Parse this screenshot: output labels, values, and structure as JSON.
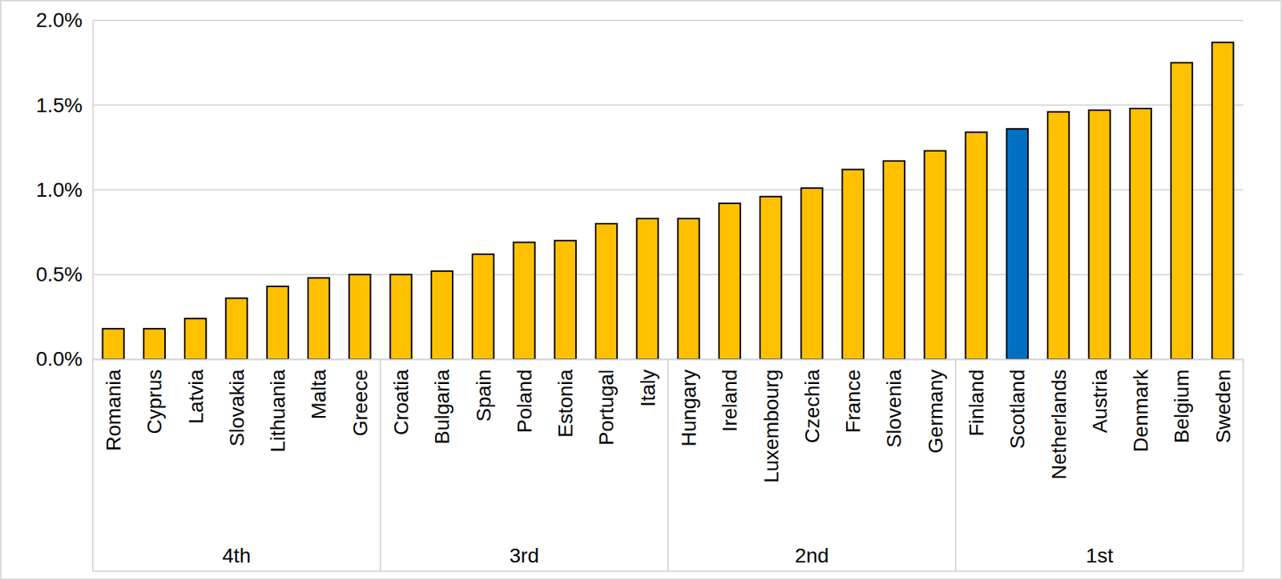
{
  "chart_data": {
    "type": "bar",
    "categories": [
      "Romania",
      "Cyprus",
      "Latvia",
      "Slovakia",
      "Lithuania",
      "Malta",
      "Greece",
      "Croatia",
      "Bulgaria",
      "Spain",
      "Poland",
      "Estonia",
      "Portugal",
      "Italy",
      "Hungary",
      "Ireland",
      "Luxembourg",
      "Czechia",
      "France",
      "Slovenia",
      "Germany",
      "Finland",
      "Scotland",
      "Netherlands",
      "Austria",
      "Denmark",
      "Belgium",
      "Sweden"
    ],
    "category_groups": [
      "4th",
      "4th",
      "4th",
      "4th",
      "4th",
      "4th",
      "4th",
      "3rd",
      "3rd",
      "3rd",
      "3rd",
      "3rd",
      "3rd",
      "3rd",
      "2nd",
      "2nd",
      "2nd",
      "2nd",
      "2nd",
      "2nd",
      "2nd",
      "1st",
      "1st",
      "1st",
      "1st",
      "1st",
      "1st",
      "1st"
    ],
    "values": [
      0.18,
      0.18,
      0.24,
      0.36,
      0.43,
      0.48,
      0.5,
      0.5,
      0.52,
      0.62,
      0.69,
      0.7,
      0.8,
      0.83,
      0.83,
      0.92,
      0.96,
      1.01,
      1.12,
      1.17,
      1.23,
      1.34,
      1.36,
      1.46,
      1.47,
      1.48,
      1.75,
      1.87
    ],
    "colors": [
      "#ffc000",
      "#ffc000",
      "#ffc000",
      "#ffc000",
      "#ffc000",
      "#ffc000",
      "#ffc000",
      "#ffc000",
      "#ffc000",
      "#ffc000",
      "#ffc000",
      "#ffc000",
      "#ffc000",
      "#ffc000",
      "#ffc000",
      "#ffc000",
      "#ffc000",
      "#ffc000",
      "#ffc000",
      "#ffc000",
      "#ffc000",
      "#ffc000",
      "#0070c0",
      "#ffc000",
      "#ffc000",
      "#ffc000",
      "#ffc000",
      "#ffc000"
    ],
    "ylim": [
      0,
      2
    ],
    "yticks": [
      {
        "value": 0,
        "label": "0.0%"
      },
      {
        "value": 0.5,
        "label": "0.5%"
      },
      {
        "value": 1,
        "label": "1.0%"
      },
      {
        "value": 1.5,
        "label": "1.5%"
      },
      {
        "value": 2,
        "label": "2.0%"
      }
    ],
    "grid": true
  }
}
